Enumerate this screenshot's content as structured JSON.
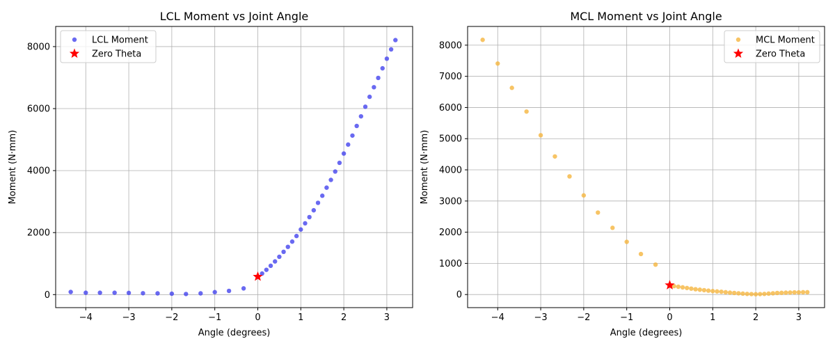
{
  "chart_data": [
    {
      "type": "scatter",
      "title": "LCL Moment vs Joint Angle",
      "xlabel": "Angle (degrees)",
      "ylabel": "Moment (N·mm)",
      "xlim": [
        -4.7,
        3.6
      ],
      "ylim": [
        -420,
        8650
      ],
      "xticks": [
        -4,
        -3,
        -2,
        -1,
        0,
        1,
        2,
        3
      ],
      "yticks": [
        0,
        2000,
        4000,
        6000,
        8000
      ],
      "grid": true,
      "legend_position": "upper left",
      "series": [
        {
          "name": "LCL Moment",
          "marker": "circle",
          "color": "#4444ee",
          "x": [
            -4.35,
            -4.0,
            -3.67,
            -3.33,
            -3.0,
            -2.67,
            -2.33,
            -2.0,
            -1.67,
            -1.33,
            -1.0,
            -0.67,
            -0.33,
            0.1,
            0.2,
            0.3,
            0.4,
            0.5,
            0.6,
            0.7,
            0.8,
            0.9,
            1.0,
            1.1,
            1.2,
            1.3,
            1.4,
            1.5,
            1.6,
            1.7,
            1.8,
            1.9,
            2.0,
            2.1,
            2.2,
            2.3,
            2.4,
            2.5,
            2.6,
            2.7,
            2.8,
            2.9,
            3.0,
            3.1,
            3.2
          ],
          "y": [
            85,
            60,
            60,
            60,
            55,
            45,
            40,
            30,
            20,
            40,
            80,
            120,
            200,
            680,
            800,
            930,
            1070,
            1220,
            1380,
            1540,
            1710,
            1890,
            2100,
            2300,
            2500,
            2720,
            2960,
            3190,
            3450,
            3700,
            3970,
            4250,
            4550,
            4840,
            5130,
            5440,
            5750,
            6060,
            6380,
            6690,
            6990,
            7300,
            7610,
            7910,
            8210
          ]
        },
        {
          "name": "Zero Theta",
          "marker": "star",
          "color": "#ff0000",
          "x": [
            0
          ],
          "y": [
            580
          ]
        }
      ]
    },
    {
      "type": "scatter",
      "title": "MCL Moment vs Joint Angle",
      "xlabel": "Angle (degrees)",
      "ylabel": "Moment (N·mm)",
      "xlim": [
        -4.7,
        3.6
      ],
      "ylim": [
        -420,
        8600
      ],
      "xticks": [
        -4,
        -3,
        -2,
        -1,
        0,
        1,
        2,
        3
      ],
      "yticks": [
        0,
        1000,
        2000,
        3000,
        4000,
        5000,
        6000,
        7000,
        8000
      ],
      "grid": true,
      "legend_position": "upper right",
      "series": [
        {
          "name": "MCL Moment",
          "marker": "circle",
          "color": "#f5b53f",
          "x": [
            -4.35,
            -4.0,
            -3.67,
            -3.33,
            -3.0,
            -2.67,
            -2.33,
            -2.0,
            -1.67,
            -1.33,
            -1.0,
            -0.67,
            -0.33,
            0.1,
            0.2,
            0.3,
            0.4,
            0.5,
            0.6,
            0.7,
            0.8,
            0.9,
            1.0,
            1.1,
            1.2,
            1.3,
            1.4,
            1.5,
            1.6,
            1.7,
            1.8,
            1.9,
            2.0,
            2.1,
            2.2,
            2.3,
            2.4,
            2.5,
            2.6,
            2.7,
            2.8,
            2.9,
            3.0,
            3.1,
            3.2
          ],
          "y": [
            8170,
            7410,
            6630,
            5870,
            5110,
            4430,
            3790,
            3180,
            2630,
            2140,
            1690,
            1300,
            960,
            270,
            250,
            230,
            210,
            190,
            170,
            155,
            140,
            125,
            110,
            100,
            90,
            75,
            60,
            50,
            40,
            30,
            20,
            15,
            10,
            15,
            20,
            30,
            40,
            50,
            55,
            60,
            65,
            70,
            70,
            75,
            75
          ]
        },
        {
          "name": "Zero Theta",
          "marker": "star",
          "color": "#ff0000",
          "x": [
            0
          ],
          "y": [
            300
          ]
        }
      ]
    }
  ]
}
